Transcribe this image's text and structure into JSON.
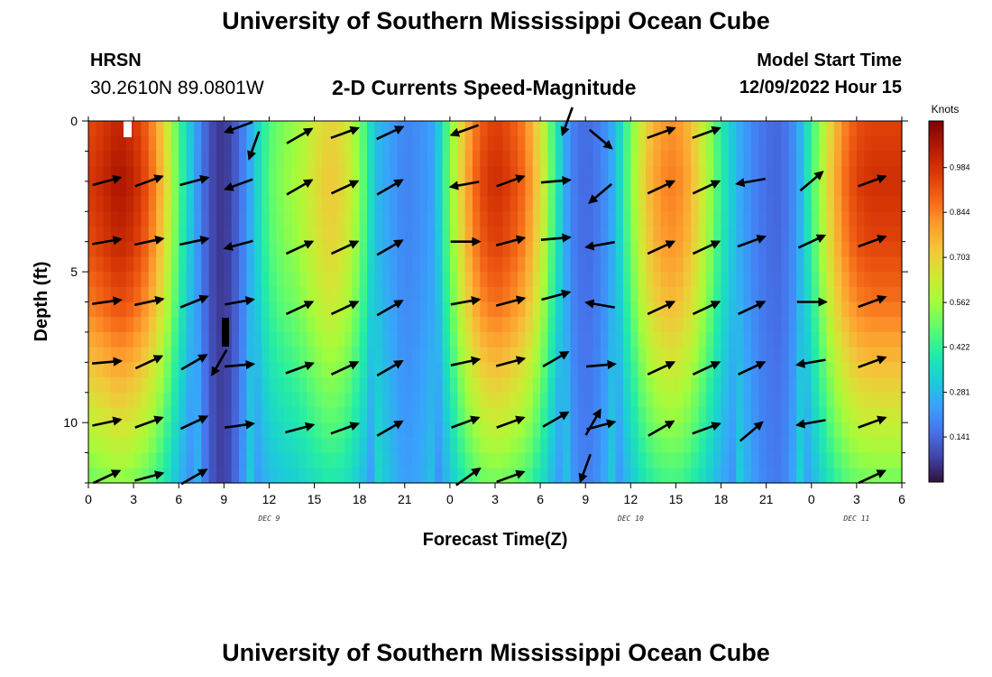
{
  "header": {
    "main_title": "University of Southern Mississippi Ocean Cube",
    "station_id": "HRSN",
    "station_coords": "30.2610N  89.0801W",
    "product_title": "2-D Currents Speed-Magnitude",
    "model_start_label": "Model Start Time",
    "model_start_value": "12/09/2022 Hour 15"
  },
  "footer": {
    "repeat_title": "University of Southern Mississippi Ocean Cube"
  },
  "chart_data": {
    "type": "heatmap",
    "title": "2-D Currents Speed-Magnitude",
    "xlabel": "Forecast Time(Z)",
    "ylabel": "Depth (ft)",
    "x_ticks": [
      "0",
      "3",
      "6",
      "9",
      "12",
      "15",
      "18",
      "21",
      "0",
      "3",
      "6",
      "9",
      "12",
      "15",
      "18",
      "21",
      "0",
      "3",
      "6"
    ],
    "x_range_hours": [
      0,
      54
    ],
    "y_range_ft": [
      0,
      12
    ],
    "y_ticks": [
      "0",
      "5",
      "10"
    ],
    "day_labels": [
      {
        "text": "DEC 9",
        "hour": 12
      },
      {
        "text": "DEC 10",
        "hour": 36
      },
      {
        "text": "DEC 11",
        "hour": 51
      }
    ],
    "colorbar": {
      "unit": "Knots",
      "ticks": [
        "0.984",
        "0.844",
        "0.703",
        "0.562",
        "0.422",
        "0.281",
        "0.141"
      ],
      "tick_values": [
        0.984,
        0.844,
        0.703,
        0.562,
        0.422,
        0.281,
        0.141
      ],
      "range": [
        0.0,
        1.13
      ]
    },
    "colors": {
      "c0": "#30123b",
      "c1": "#4145ab",
      "c2": "#4675ed",
      "c3": "#39a2fc",
      "c4": "#1bcfd4",
      "c5": "#24eca6",
      "c6": "#61fc6c",
      "c7": "#a4fc3b",
      "c8": "#d1e834",
      "c9": "#f3c63a",
      "c10": "#fe9b2d",
      "c11": "#f36315",
      "c12": "#d93806",
      "c13": "#b11901",
      "c14": "#7a0402"
    },
    "speed_profile_by_hour": [
      [
        0,
        0.93
      ],
      [
        1,
        0.97
      ],
      [
        2,
        1.02
      ],
      [
        3,
        0.98
      ],
      [
        4,
        0.88
      ],
      [
        5,
        0.7
      ],
      [
        6,
        0.45
      ],
      [
        7,
        0.26
      ],
      [
        8,
        0.1
      ],
      [
        9,
        0.05
      ],
      [
        10,
        0.14
      ],
      [
        11,
        0.3
      ],
      [
        12,
        0.46
      ],
      [
        13,
        0.52
      ],
      [
        14,
        0.56
      ],
      [
        15,
        0.64
      ],
      [
        16,
        0.7
      ],
      [
        17,
        0.66
      ],
      [
        18,
        0.52
      ],
      [
        19,
        0.3
      ],
      [
        20,
        0.24
      ],
      [
        21,
        0.19
      ],
      [
        22,
        0.21
      ],
      [
        23,
        0.25
      ],
      [
        24,
        0.5
      ],
      [
        25,
        0.74
      ],
      [
        26,
        0.9
      ],
      [
        27,
        0.96
      ],
      [
        28,
        0.92
      ],
      [
        29,
        0.84
      ],
      [
        30,
        0.66
      ],
      [
        31,
        0.4
      ],
      [
        32,
        0.19
      ],
      [
        33,
        0.14
      ],
      [
        34,
        0.18
      ],
      [
        35,
        0.28
      ],
      [
        36,
        0.5
      ],
      [
        37,
        0.7
      ],
      [
        38,
        0.8
      ],
      [
        39,
        0.82
      ],
      [
        40,
        0.74
      ],
      [
        41,
        0.58
      ],
      [
        42,
        0.4
      ],
      [
        43,
        0.28
      ],
      [
        44,
        0.2
      ],
      [
        45,
        0.15
      ],
      [
        46,
        0.14
      ],
      [
        47,
        0.22
      ],
      [
        48,
        0.42
      ],
      [
        49,
        0.64
      ],
      [
        50,
        0.82
      ],
      [
        51,
        0.92
      ],
      [
        52,
        0.95
      ],
      [
        53,
        0.95
      ],
      [
        54,
        0.95
      ]
    ],
    "depth_factor": [
      [
        0,
        1.0
      ],
      [
        2,
        1.05
      ],
      [
        4,
        1.0
      ],
      [
        6,
        0.9
      ],
      [
        8,
        0.75
      ],
      [
        10,
        0.6
      ],
      [
        12,
        0.45
      ]
    ],
    "vectors": [
      {
        "hour": 1.2,
        "depth": 2.0,
        "dir": 15
      },
      {
        "hour": 1.2,
        "depth": 4.0,
        "dir": 10
      },
      {
        "hour": 1.2,
        "depth": 6.0,
        "dir": 8
      },
      {
        "hour": 1.2,
        "depth": 8.0,
        "dir": 5
      },
      {
        "hour": 1.2,
        "depth": 10.0,
        "dir": 12
      },
      {
        "hour": 1.2,
        "depth": 11.8,
        "dir": 25
      },
      {
        "hour": 4.0,
        "depth": 2.0,
        "dir": 20
      },
      {
        "hour": 4.0,
        "depth": 4.0,
        "dir": 12
      },
      {
        "hour": 4.0,
        "depth": 6.0,
        "dir": 12
      },
      {
        "hour": 4.0,
        "depth": 8.0,
        "dir": 25
      },
      {
        "hour": 4.0,
        "depth": 10.0,
        "dir": 20
      },
      {
        "hour": 4.0,
        "depth": 11.8,
        "dir": 15
      },
      {
        "hour": 7.0,
        "depth": 2.0,
        "dir": 15
      },
      {
        "hour": 7.0,
        "depth": 4.0,
        "dir": 12
      },
      {
        "hour": 7.0,
        "depth": 6.0,
        "dir": 22
      },
      {
        "hour": 7.0,
        "depth": 8.0,
        "dir": 30
      },
      {
        "hour": 7.0,
        "depth": 10.0,
        "dir": 25
      },
      {
        "hour": 7.0,
        "depth": 11.8,
        "dir": 30
      },
      {
        "hour": 8.7,
        "depth": 8.0,
        "dir": 240
      },
      {
        "hour": 10.0,
        "depth": 0.2,
        "dir": 200
      },
      {
        "hour": 11.0,
        "depth": 0.8,
        "dir": 250
      },
      {
        "hour": 10.0,
        "depth": 2.1,
        "dir": 200
      },
      {
        "hour": 10.0,
        "depth": 4.1,
        "dir": 195
      },
      {
        "hour": 10.0,
        "depth": 6.0,
        "dir": 10
      },
      {
        "hour": 10.0,
        "depth": 8.1,
        "dir": 5
      },
      {
        "hour": 10.0,
        "depth": 10.1,
        "dir": 8
      },
      {
        "hour": 14.0,
        "depth": 0.5,
        "dir": 30
      },
      {
        "hour": 14.0,
        "depth": 2.2,
        "dir": 30
      },
      {
        "hour": 14.0,
        "depth": 4.2,
        "dir": 25
      },
      {
        "hour": 14.0,
        "depth": 6.2,
        "dir": 25
      },
      {
        "hour": 14.0,
        "depth": 8.2,
        "dir": 20
      },
      {
        "hour": 14.0,
        "depth": 10.2,
        "dir": 15
      },
      {
        "hour": 17.0,
        "depth": 0.4,
        "dir": 20
      },
      {
        "hour": 17.0,
        "depth": 2.2,
        "dir": 25
      },
      {
        "hour": 17.0,
        "depth": 4.2,
        "dir": 25
      },
      {
        "hour": 17.0,
        "depth": 6.2,
        "dir": 25
      },
      {
        "hour": 17.0,
        "depth": 8.2,
        "dir": 25
      },
      {
        "hour": 17.0,
        "depth": 10.2,
        "dir": 20
      },
      {
        "hour": 20.0,
        "depth": 0.4,
        "dir": 25
      },
      {
        "hour": 20.0,
        "depth": 2.2,
        "dir": 30
      },
      {
        "hour": 20.0,
        "depth": 4.2,
        "dir": 30
      },
      {
        "hour": 20.0,
        "depth": 6.2,
        "dir": 30
      },
      {
        "hour": 20.0,
        "depth": 8.2,
        "dir": 30
      },
      {
        "hour": 20.0,
        "depth": 10.2,
        "dir": 30
      },
      {
        "hour": 25.0,
        "depth": 0.3,
        "dir": 200
      },
      {
        "hour": 25.0,
        "depth": 2.1,
        "dir": 190
      },
      {
        "hour": 25.0,
        "depth": 4.0,
        "dir": 0
      },
      {
        "hour": 25.0,
        "depth": 6.0,
        "dir": 10
      },
      {
        "hour": 25.0,
        "depth": 8.0,
        "dir": 12
      },
      {
        "hour": 25.0,
        "depth": 10.0,
        "dir": 20
      },
      {
        "hour": 25.2,
        "depth": 11.8,
        "dir": 35
      },
      {
        "hour": 28.0,
        "depth": 2.0,
        "dir": 20
      },
      {
        "hour": 28.0,
        "depth": 4.0,
        "dir": 15
      },
      {
        "hour": 28.0,
        "depth": 6.0,
        "dir": 15
      },
      {
        "hour": 28.0,
        "depth": 8.0,
        "dir": 15
      },
      {
        "hour": 28.0,
        "depth": 10.0,
        "dir": 20
      },
      {
        "hour": 28.0,
        "depth": 11.8,
        "dir": 20
      },
      {
        "hour": 31.0,
        "depth": 2.0,
        "dir": 5
      },
      {
        "hour": 31.0,
        "depth": 3.9,
        "dir": 5
      },
      {
        "hour": 31.0,
        "depth": 5.8,
        "dir": 15
      },
      {
        "hour": 31.0,
        "depth": 7.9,
        "dir": 30
      },
      {
        "hour": 31.0,
        "depth": 9.9,
        "dir": 30
      },
      {
        "hour": 31.8,
        "depth": 0.0,
        "dir": 250
      },
      {
        "hour": 33.0,
        "depth": 11.5,
        "dir": 250
      },
      {
        "hour": 33.5,
        "depth": 10.0,
        "dir": 60
      },
      {
        "hour": 34.0,
        "depth": 0.6,
        "dir": 320
      },
      {
        "hour": 34.0,
        "depth": 2.4,
        "dir": 220
      },
      {
        "hour": 34.0,
        "depth": 4.1,
        "dir": 190
      },
      {
        "hour": 34.0,
        "depth": 6.1,
        "dir": 170
      },
      {
        "hour": 34.0,
        "depth": 8.1,
        "dir": 5
      },
      {
        "hour": 34.0,
        "depth": 10.1,
        "dir": 15
      },
      {
        "hour": 38.0,
        "depth": 0.4,
        "dir": 20
      },
      {
        "hour": 38.0,
        "depth": 2.2,
        "dir": 25
      },
      {
        "hour": 38.0,
        "depth": 4.2,
        "dir": 25
      },
      {
        "hour": 38.0,
        "depth": 6.2,
        "dir": 25
      },
      {
        "hour": 38.0,
        "depth": 8.2,
        "dir": 25
      },
      {
        "hour": 38.0,
        "depth": 10.2,
        "dir": 30
      },
      {
        "hour": 41.0,
        "depth": 0.4,
        "dir": 20
      },
      {
        "hour": 41.0,
        "depth": 2.2,
        "dir": 25
      },
      {
        "hour": 41.0,
        "depth": 4.2,
        "dir": 25
      },
      {
        "hour": 41.0,
        "depth": 6.2,
        "dir": 25
      },
      {
        "hour": 41.0,
        "depth": 8.2,
        "dir": 25
      },
      {
        "hour": 41.0,
        "depth": 10.2,
        "dir": 20
      },
      {
        "hour": 44.0,
        "depth": 2.0,
        "dir": 190
      },
      {
        "hour": 44.0,
        "depth": 4.0,
        "dir": 20
      },
      {
        "hour": 44.0,
        "depth": 6.2,
        "dir": 25
      },
      {
        "hour": 44.0,
        "depth": 8.2,
        "dir": 25
      },
      {
        "hour": 44.0,
        "depth": 10.3,
        "dir": 40
      },
      {
        "hour": 48.0,
        "depth": 2.0,
        "dir": 40
      },
      {
        "hour": 48.0,
        "depth": 4.0,
        "dir": 25
      },
      {
        "hour": 48.0,
        "depth": 6.0,
        "dir": 0
      },
      {
        "hour": 48.0,
        "depth": 8.0,
        "dir": 190
      },
      {
        "hour": 48.0,
        "depth": 10.0,
        "dir": 190
      },
      {
        "hour": 52.0,
        "depth": 2.0,
        "dir": 20
      },
      {
        "hour": 52.0,
        "depth": 4.0,
        "dir": 20
      },
      {
        "hour": 52.0,
        "depth": 6.0,
        "dir": 20
      },
      {
        "hour": 52.0,
        "depth": 8.0,
        "dir": 20
      },
      {
        "hour": 52.0,
        "depth": 10.0,
        "dir": 20
      },
      {
        "hour": 52.0,
        "depth": 11.8,
        "dir": 25
      }
    ]
  }
}
